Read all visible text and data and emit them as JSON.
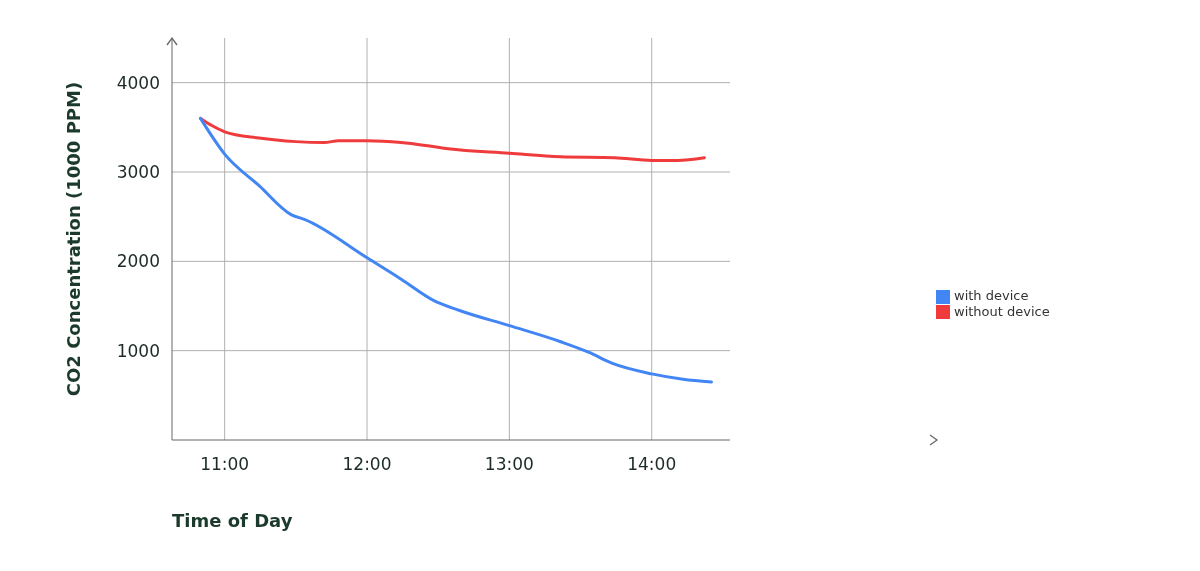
{
  "chart_data": {
    "type": "line",
    "xlabel": "Time of Day",
    "ylabel": "CO2 Concentration (1000 PPM)",
    "xlim": [
      10.63,
      14.55
    ],
    "xticks": [
      {
        "value": 11,
        "label": "11:00"
      },
      {
        "value": 12,
        "label": "12:00"
      },
      {
        "value": 13,
        "label": "13:00"
      },
      {
        "value": 14,
        "label": "14:00"
      }
    ],
    "ylim": [
      0,
      4500
    ],
    "yticks": [
      1000,
      2000,
      3000,
      4000
    ],
    "grid": true,
    "legend": "right",
    "marker": "none",
    "line_style": "solid",
    "series": [
      {
        "name": "without device",
        "color": "#ef3b3b",
        "x": [
          10.83,
          10.91,
          11.0,
          11.24,
          11.5,
          11.7,
          11.8,
          12.0,
          12.24,
          12.44,
          12.57,
          13.0,
          13.36,
          13.74,
          14.0,
          14.18,
          14.37
        ],
        "values": [
          3600,
          3520,
          3450,
          3380,
          3340,
          3330,
          3350,
          3350,
          3330,
          3290,
          3260,
          3210,
          3170,
          3160,
          3130,
          3130,
          3160
        ]
      },
      {
        "name": "with device",
        "color": "#4285f4",
        "x": [
          10.83,
          11.0,
          11.24,
          11.47,
          11.56,
          12.0,
          12.24,
          12.47,
          12.65,
          13.0,
          13.36,
          13.56,
          13.72,
          14.0,
          14.22,
          14.42
        ],
        "values": [
          3600,
          3200,
          2850,
          2520,
          2470,
          2040,
          1800,
          1560,
          1450,
          1280,
          1100,
          980,
          860,
          740,
          680,
          650
        ]
      }
    ]
  }
}
